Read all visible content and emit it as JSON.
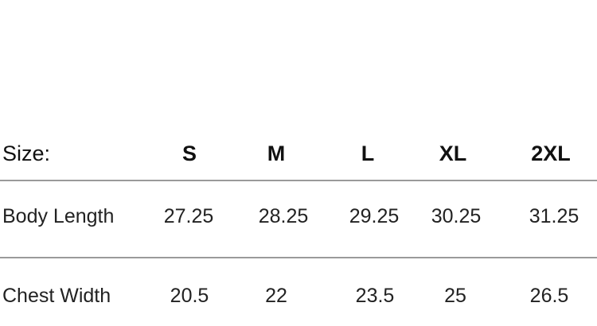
{
  "table": {
    "header_label": "Size:",
    "sizes": [
      "S",
      "M",
      "L",
      "XL",
      "2XL"
    ],
    "rows": [
      {
        "label": "Body Length",
        "values": [
          "27.25",
          "28.25",
          "29.25",
          "30.25",
          "31.25"
        ]
      },
      {
        "label": "Chest Width",
        "values": [
          "20.5",
          "22",
          "23.5",
          "25",
          "26.5"
        ]
      }
    ]
  }
}
